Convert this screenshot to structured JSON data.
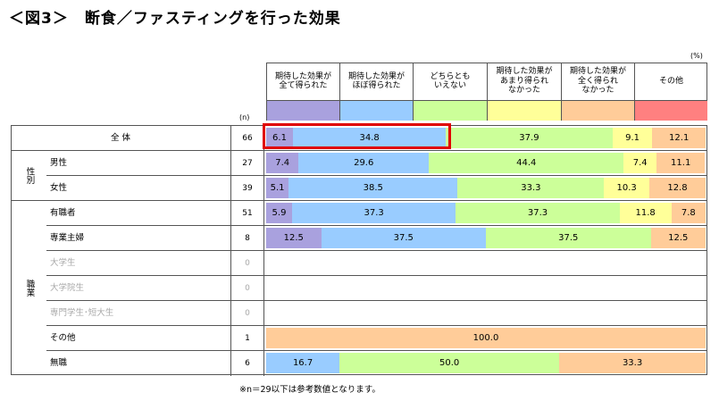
{
  "title": "＜図3＞　断食／ファスティングを行った効果",
  "unit": "(%)",
  "n_label": "(n)",
  "note": "※n＝29以下は参考数値となります。",
  "chart_data": {
    "type": "bar",
    "orientation": "horizontal-stacked-100",
    "series": [
      {
        "name": "期待した効果が\n全て得られた",
        "color": "#a9a1de"
      },
      {
        "name": "期待した効果が\nほぼ得られた",
        "color": "#99ccff"
      },
      {
        "name": "どちらとも\nいえない",
        "color": "#ccff99"
      },
      {
        "name": "期待した効果が\nあまり得られ\nなかった",
        "color": "#ffff99"
      },
      {
        "name": "期待した効果が\n全く得られ\nなかった",
        "color": "#ffcc99"
      },
      {
        "name": "その他",
        "color": "#ff8080"
      }
    ],
    "groups": [
      {
        "label": "",
        "rows": [
          0
        ]
      },
      {
        "label": "性別",
        "rows": [
          1,
          2
        ]
      },
      {
        "label": "職業",
        "rows": [
          3,
          4,
          5,
          6,
          7,
          8,
          9
        ]
      }
    ],
    "rows": [
      {
        "label": "全 体",
        "n": "66",
        "values": [
          6.1,
          34.8,
          37.9,
          9.1,
          12.1,
          0
        ]
      },
      {
        "label": "男性",
        "n": "27",
        "values": [
          7.4,
          29.6,
          44.4,
          7.4,
          11.1,
          0
        ]
      },
      {
        "label": "女性",
        "n": "39",
        "values": [
          5.1,
          38.5,
          33.3,
          10.3,
          12.8,
          0
        ]
      },
      {
        "label": "有職者",
        "n": "51",
        "values": [
          5.9,
          37.3,
          37.3,
          11.8,
          7.8,
          0
        ]
      },
      {
        "label": "専業主婦",
        "n": "8",
        "values": [
          12.5,
          37.5,
          37.5,
          0,
          12.5,
          0
        ]
      },
      {
        "label": "大学生",
        "n": "0",
        "values": [],
        "muted": true
      },
      {
        "label": "大学院生",
        "n": "0",
        "values": [],
        "muted": true
      },
      {
        "label": "専門学生･短大生",
        "n": "0",
        "values": [],
        "muted": true
      },
      {
        "label": "その他",
        "n": "1",
        "values": [
          0,
          0,
          0,
          0,
          100.0,
          0
        ]
      },
      {
        "label": "無職",
        "n": "6",
        "values": [
          0,
          16.7,
          50.0,
          0,
          33.3,
          0
        ]
      }
    ],
    "highlight": "全体 row: 全て得られた + ほぼ得られた",
    "highlight_color": "#e00000"
  }
}
